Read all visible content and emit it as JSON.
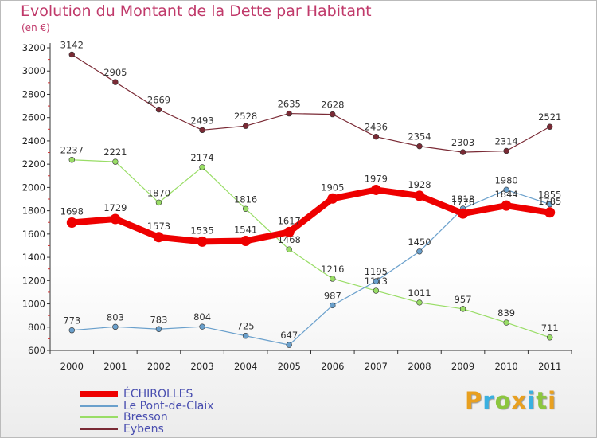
{
  "header": {
    "title": "Evolution du Montant de la Dette par Habitant",
    "subtitle": "(en €)"
  },
  "brand": {
    "letters": [
      "P",
      "r",
      "o",
      "x",
      "i",
      "t",
      "i"
    ],
    "colors": [
      "#e8a020",
      "#3ab0e0",
      "#8cc63f",
      "#e8a020",
      "#3ab0e0",
      "#8cc63f",
      "#e8a020"
    ]
  },
  "chart_data": {
    "type": "line",
    "title": "Evolution du Montant de la Dette par Habitant",
    "subtitle": "(en €)",
    "xlabel": "",
    "ylabel": "",
    "categories": [
      "2000",
      "2001",
      "2002",
      "2003",
      "2004",
      "2005",
      "2006",
      "2007",
      "2008",
      "2009",
      "2010",
      "2011"
    ],
    "ylim": [
      600,
      3200
    ],
    "yticks": [
      600,
      800,
      1000,
      1200,
      1400,
      1600,
      1800,
      2000,
      2200,
      2400,
      2600,
      2800,
      3000,
      3200
    ],
    "grid": false,
    "legend_position": "bottom-left",
    "series": [
      {
        "name": "Eybens",
        "color": "#7a2a35",
        "values": [
          3142,
          2905,
          2669,
          2493,
          2528,
          2635,
          2628,
          2436,
          2354,
          2303,
          2314,
          2521
        ]
      },
      {
        "name": "Bresson",
        "color": "#99dd66",
        "values": [
          2237,
          2221,
          1870,
          2174,
          1816,
          1468,
          1216,
          1113,
          1011,
          957,
          839,
          711
        ]
      },
      {
        "name": "Le Pont-de-Claix",
        "color": "#6aa0cc",
        "values": [
          773,
          803,
          783,
          804,
          725,
          647,
          987,
          1195,
          1450,
          1818,
          1980,
          1855
        ]
      },
      {
        "name": "ÉCHIROLLES",
        "color": "#ee0000",
        "values": [
          1698,
          1729,
          1573,
          1535,
          1541,
          1617,
          1905,
          1979,
          1928,
          1776,
          1844,
          1785
        ]
      }
    ]
  }
}
